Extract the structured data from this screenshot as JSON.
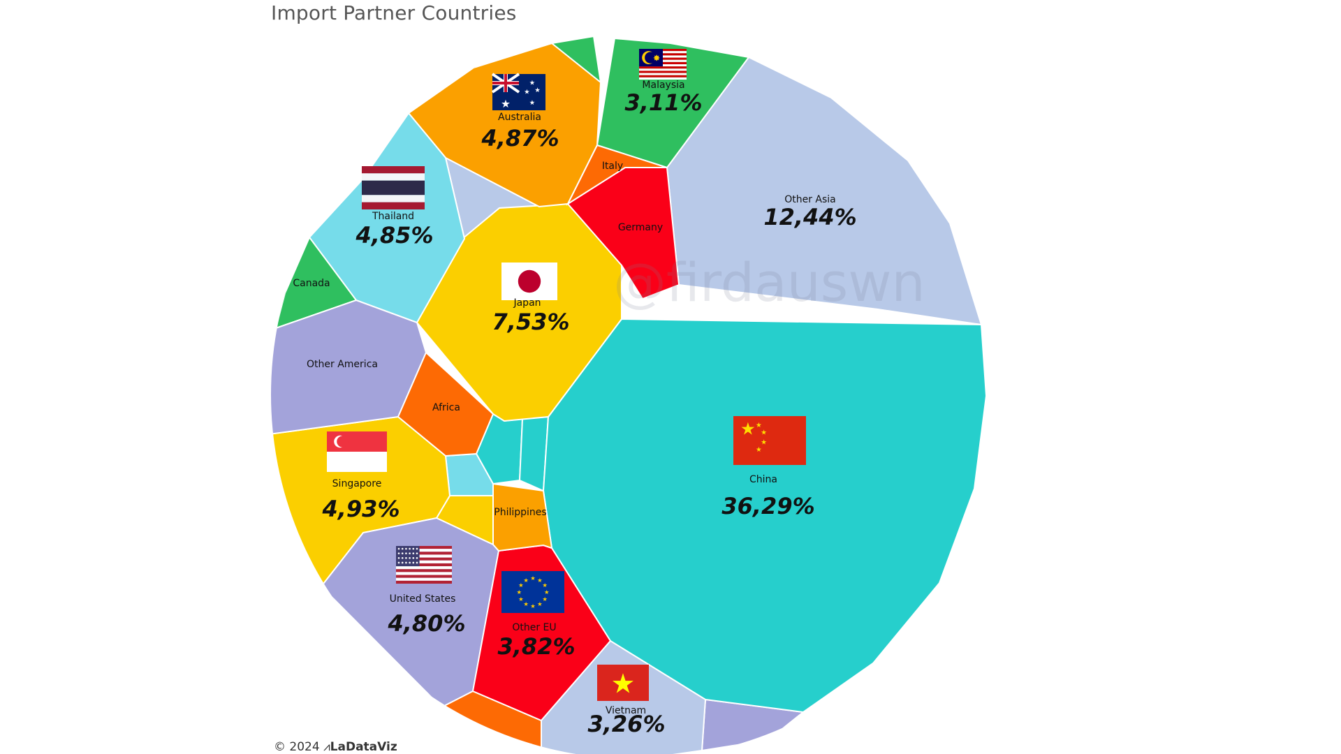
{
  "title": "Import Partner Countries",
  "footer": {
    "copyright": "© 2024",
    "brand": "LaDataViz"
  },
  "watermark": "@firdauswn",
  "chart_data": {
    "type": "voronoi-treemap",
    "unit": "%",
    "cells": [
      {
        "name": "China",
        "value": "36,29%",
        "color": "#26cfcc",
        "flag": "china-flag"
      },
      {
        "name": "Other Asia",
        "value": "12,44%",
        "color": "#b8c9e8"
      },
      {
        "name": "Japan",
        "value": "7,53%",
        "color": "#fbcf00",
        "flag": "japan-flag"
      },
      {
        "name": "Singapore",
        "value": "4,93%",
        "color": "#fbcf00",
        "flag": "singapore-flag"
      },
      {
        "name": "Australia",
        "value": "4,87%",
        "color": "#fba000",
        "flag": "australia-flag"
      },
      {
        "name": "Thailand",
        "value": "4,85%",
        "color": "#76dcea",
        "flag": "thailand-flag"
      },
      {
        "name": "United States",
        "value": "4,80%",
        "color": "#a3a3da",
        "flag": "usa-flag"
      },
      {
        "name": "Other EU",
        "value": "3,82%",
        "color": "#fa0018",
        "flag": "eu-flag"
      },
      {
        "name": "Vietnam",
        "value": "3,26%",
        "color": "#b8c9e8",
        "flag": "vietnam-flag"
      },
      {
        "name": "Malaysia",
        "value": "3,11%",
        "color": "#2fbf5f",
        "flag": "malaysia-flag"
      },
      {
        "name": "Germany",
        "value": "",
        "color": "#fa0018"
      },
      {
        "name": "Italy",
        "value": "",
        "color": "#fd6a04"
      },
      {
        "name": "Canada",
        "value": "",
        "color": "#2fbf5f"
      },
      {
        "name": "Other America",
        "value": "",
        "color": "#a3a3da"
      },
      {
        "name": "Africa",
        "value": "",
        "color": "#fd6a04"
      },
      {
        "name": "Philippines",
        "value": "",
        "color": "#fba000"
      }
    ]
  }
}
